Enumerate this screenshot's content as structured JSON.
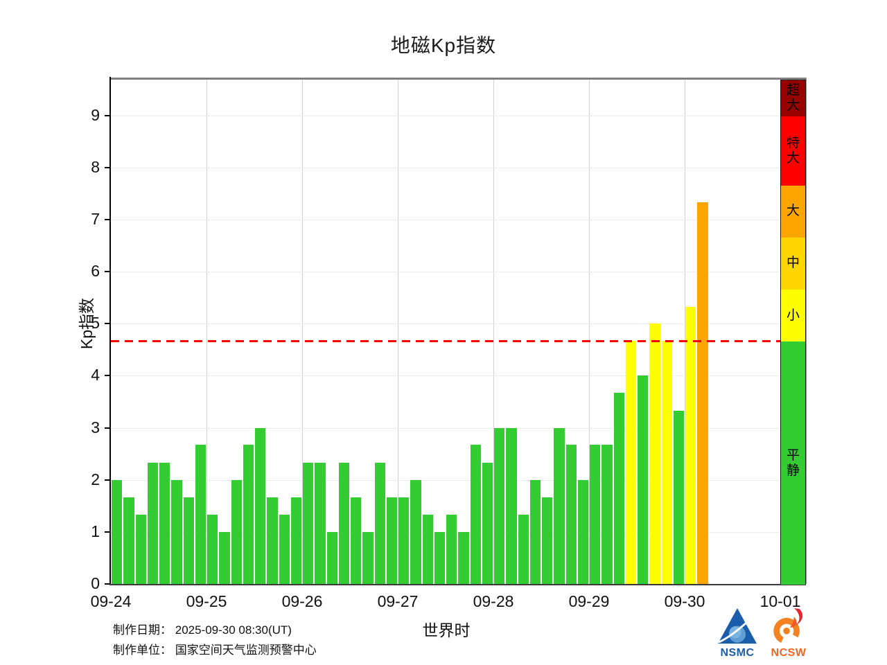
{
  "title": "地磁Kp指数",
  "axes": {
    "ylabel": "Kp指数",
    "xlabel": "世界时",
    "yticks": [
      0,
      1,
      2,
      3,
      4,
      5,
      6,
      7,
      8,
      9
    ],
    "xtick_labels": [
      "09-24",
      "09-25",
      "09-26",
      "09-27",
      "09-28",
      "09-29",
      "09-30",
      "10-01"
    ]
  },
  "threshold_line": {
    "value": 4.67,
    "color": "#ff0000"
  },
  "legend_bands": [
    {
      "label": "超大",
      "from": 9.0,
      "to": 9.69,
      "color": "#990000"
    },
    {
      "label": "特大",
      "from": 7.67,
      "to": 9.0,
      "color": "#ff0000"
    },
    {
      "label": "大",
      "from": 6.67,
      "to": 7.67,
      "color": "#ffa500"
    },
    {
      "label": "中",
      "from": 5.67,
      "to": 6.67,
      "color": "#ffd700"
    },
    {
      "label": "小",
      "from": 4.67,
      "to": 5.67,
      "color": "#ffff00"
    },
    {
      "label": "平静",
      "from": 0,
      "to": 4.67,
      "color": "#33cc33"
    }
  ],
  "chart_data": {
    "type": "bar",
    "title": "地磁Kp指数",
    "xlabel": "世界时",
    "ylabel": "Kp指数",
    "ylim": [
      0,
      9.69
    ],
    "grid": true,
    "legend_position": "right",
    "x_dates": [
      "09-24",
      "09-25",
      "09-26",
      "09-27",
      "09-28",
      "09-29",
      "09-30",
      "10-01"
    ],
    "bars_per_day": 8,
    "interval_hours": 3,
    "threshold": 4.67,
    "values": [
      2.0,
      1.67,
      1.33,
      2.33,
      2.33,
      2.0,
      1.67,
      2.67,
      1.33,
      1.0,
      2.0,
      2.67,
      3.0,
      1.67,
      1.33,
      1.67,
      2.33,
      2.33,
      1.0,
      2.33,
      1.67,
      1.0,
      2.33,
      1.67,
      1.67,
      2.0,
      1.33,
      1.0,
      1.33,
      1.0,
      2.67,
      2.33,
      3.0,
      3.0,
      1.33,
      2.0,
      1.67,
      3.0,
      2.67,
      2.0,
      2.67,
      2.67,
      3.67,
      4.67,
      4.0,
      5.0,
      4.67,
      3.33,
      5.33,
      7.33
    ]
  },
  "footer": {
    "date_label": "制作日期：",
    "date_value": "2025-09-30 08:30(UT)",
    "org_label": "制作单位：",
    "org_value": "国家空间天气监测预警中心"
  },
  "logos": {
    "nsmc": "NSMC",
    "ncsw": "NCSW"
  }
}
